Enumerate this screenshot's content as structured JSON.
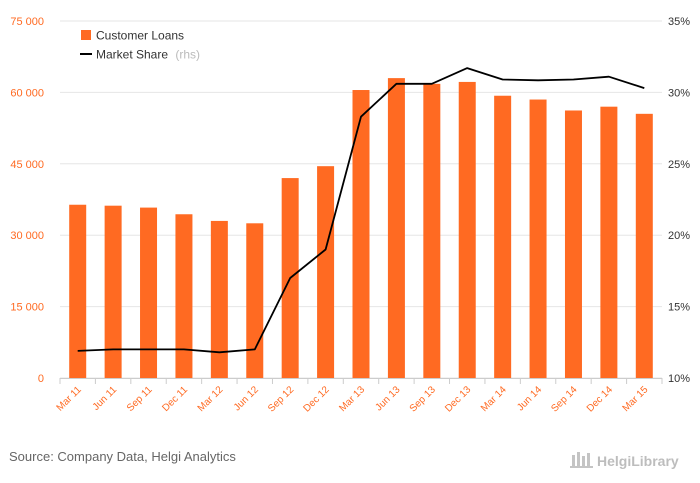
{
  "chart_data": {
    "type": "bar+line",
    "categories": [
      "Mar 11",
      "Jun 11",
      "Sep 11",
      "Dec 11",
      "Mar 12",
      "Jun 12",
      "Sep 12",
      "Dec 12",
      "Mar 13",
      "Jun 13",
      "Sep 13",
      "Dec 13",
      "Mar 14",
      "Jun 14",
      "Sep 14",
      "Dec 14",
      "Mar 15"
    ],
    "series": [
      {
        "name": "Customer Loans",
        "type": "bar",
        "axis": "left",
        "color": "#ff6a22",
        "values": [
          36400,
          36200,
          35800,
          34400,
          33000,
          32500,
          42000,
          44500,
          60500,
          63000,
          61800,
          62200,
          59300,
          58500,
          56200,
          57000,
          55500
        ]
      },
      {
        "name": "Market Share",
        "type": "line",
        "axis": "right",
        "color": "#000000",
        "values": [
          11.9,
          12.0,
          12.0,
          12.0,
          11.8,
          12.0,
          17.0,
          19.0,
          28.3,
          30.6,
          30.6,
          31.7,
          30.9,
          30.85,
          30.9,
          31.1,
          30.3
        ]
      }
    ],
    "y_left": {
      "min": 0,
      "max": 75000,
      "ticks": [
        "0",
        "15 000",
        "30 000",
        "45 000",
        "60 000",
        "75 000"
      ]
    },
    "y_right": {
      "min": 10,
      "max": 35,
      "ticks": [
        "10%",
        "15%",
        "20%",
        "25%",
        "30%",
        "35%"
      ]
    },
    "legend": {
      "position": "top-left",
      "items": [
        {
          "label": "Customer Loans",
          "marker": "square"
        },
        {
          "label": "Market Share",
          "suffix": "(rhs)",
          "marker": "line"
        }
      ]
    }
  },
  "footer": {
    "source": "Source: Company Data, Helgi Analytics",
    "brand": "HelgiLibrary"
  },
  "colors": {
    "bar": "#ff6a22",
    "line": "#000000",
    "grid": "#e6e6e6"
  }
}
